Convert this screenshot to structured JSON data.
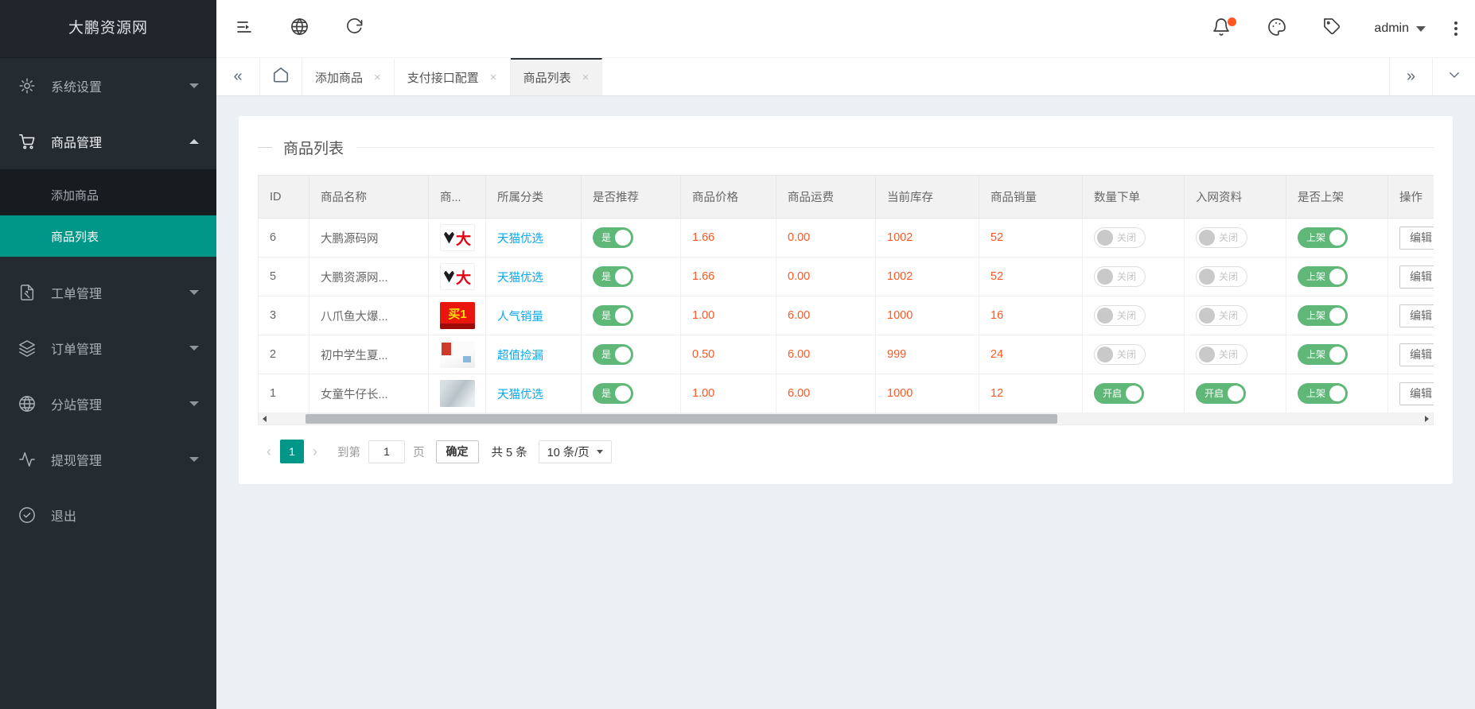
{
  "app": {
    "title": "大鹏资源网"
  },
  "colors": {
    "accent": "#009688",
    "toggle_on": "#5fb878",
    "number_red": "#ff5722",
    "link_blue": "#01aaed",
    "alert_dot": "#ff5722"
  },
  "sidebar": {
    "title": "大鹏资源网",
    "items": [
      {
        "label": "系统设置",
        "icon": "gear-icon"
      },
      {
        "label": "商品管理",
        "icon": "cart-icon"
      },
      {
        "label": "工单管理",
        "icon": "ticket-icon"
      },
      {
        "label": "订单管理",
        "icon": "layers-icon"
      },
      {
        "label": "分站管理",
        "icon": "globe-icon"
      },
      {
        "label": "提现管理",
        "icon": "activity-icon"
      },
      {
        "label": "退出",
        "icon": "logout-icon"
      }
    ],
    "submenu": [
      {
        "label": "添加商品",
        "active": false
      },
      {
        "label": "商品列表",
        "active": true
      }
    ]
  },
  "navbar": {
    "user": "admin"
  },
  "tabbar": {
    "close_glyph": "×",
    "collapse_left": "«",
    "collapse_right": "»",
    "tabs": [
      {
        "label": "添加商品",
        "active": false
      },
      {
        "label": "支付接口配置",
        "active": false
      },
      {
        "label": "商品列表",
        "active": true
      }
    ]
  },
  "panel": {
    "title": "商品列表"
  },
  "table": {
    "headers": [
      "ID",
      "商品名称",
      "商...",
      "所属分类",
      "是否推荐",
      "商品价格",
      "商品运费",
      "当前库存",
      "商品销量",
      "数量下单",
      "入网资料",
      "是否上架",
      "操作"
    ],
    "rows": [
      {
        "id": "6",
        "name": "大鹏源码网",
        "thumb": "eagle",
        "category": "天猫优选",
        "recommend": {
          "label": "是",
          "on": true
        },
        "price": "1.66",
        "shipping": "0.00",
        "stock": "1002",
        "sales": "52",
        "quantity_order": {
          "label": "关闭",
          "on": false
        },
        "network_info": {
          "label": "关闭",
          "on": false
        },
        "shelf": {
          "label": "上架",
          "on": true
        },
        "action": "编辑"
      },
      {
        "id": "5",
        "name": "大鹏资源网...",
        "thumb": "eagle",
        "category": "天猫优选",
        "recommend": {
          "label": "是",
          "on": true
        },
        "price": "1.66",
        "shipping": "0.00",
        "stock": "1002",
        "sales": "52",
        "quantity_order": {
          "label": "关闭",
          "on": false
        },
        "network_info": {
          "label": "关闭",
          "on": false
        },
        "shelf": {
          "label": "上架",
          "on": true
        },
        "action": "编辑"
      },
      {
        "id": "3",
        "name": "八爪鱼大爆...",
        "thumb": "promo",
        "category": "人气销量",
        "recommend": {
          "label": "是",
          "on": true
        },
        "price": "1.00",
        "shipping": "6.00",
        "stock": "1000",
        "sales": "16",
        "quantity_order": {
          "label": "关闭",
          "on": false
        },
        "network_info": {
          "label": "关闭",
          "on": false
        },
        "shelf": {
          "label": "上架",
          "on": true
        },
        "action": "编辑"
      },
      {
        "id": "2",
        "name": "初中学生夏...",
        "thumb": "tshirt",
        "category": "超值捡漏",
        "recommend": {
          "label": "是",
          "on": true
        },
        "price": "0.50",
        "shipping": "6.00",
        "stock": "999",
        "sales": "24",
        "quantity_order": {
          "label": "关闭",
          "on": false
        },
        "network_info": {
          "label": "关闭",
          "on": false
        },
        "shelf": {
          "label": "上架",
          "on": true
        },
        "action": "编辑"
      },
      {
        "id": "1",
        "name": "女童牛仔长...",
        "thumb": "jeans",
        "category": "天猫优选",
        "recommend": {
          "label": "是",
          "on": true
        },
        "price": "1.00",
        "shipping": "6.00",
        "stock": "1000",
        "sales": "12",
        "quantity_order": {
          "label": "开启",
          "on": true
        },
        "network_info": {
          "label": "开启",
          "on": true
        },
        "shelf": {
          "label": "上架",
          "on": true
        },
        "action": "编辑"
      }
    ]
  },
  "pagination": {
    "prev": "‹",
    "current_page": "1",
    "next": "›",
    "goto_label": "到第",
    "goto_value": "1",
    "page_word": "页",
    "confirm_label": "确定",
    "total_label": "共 5 条",
    "per_page": "10 条/页"
  }
}
